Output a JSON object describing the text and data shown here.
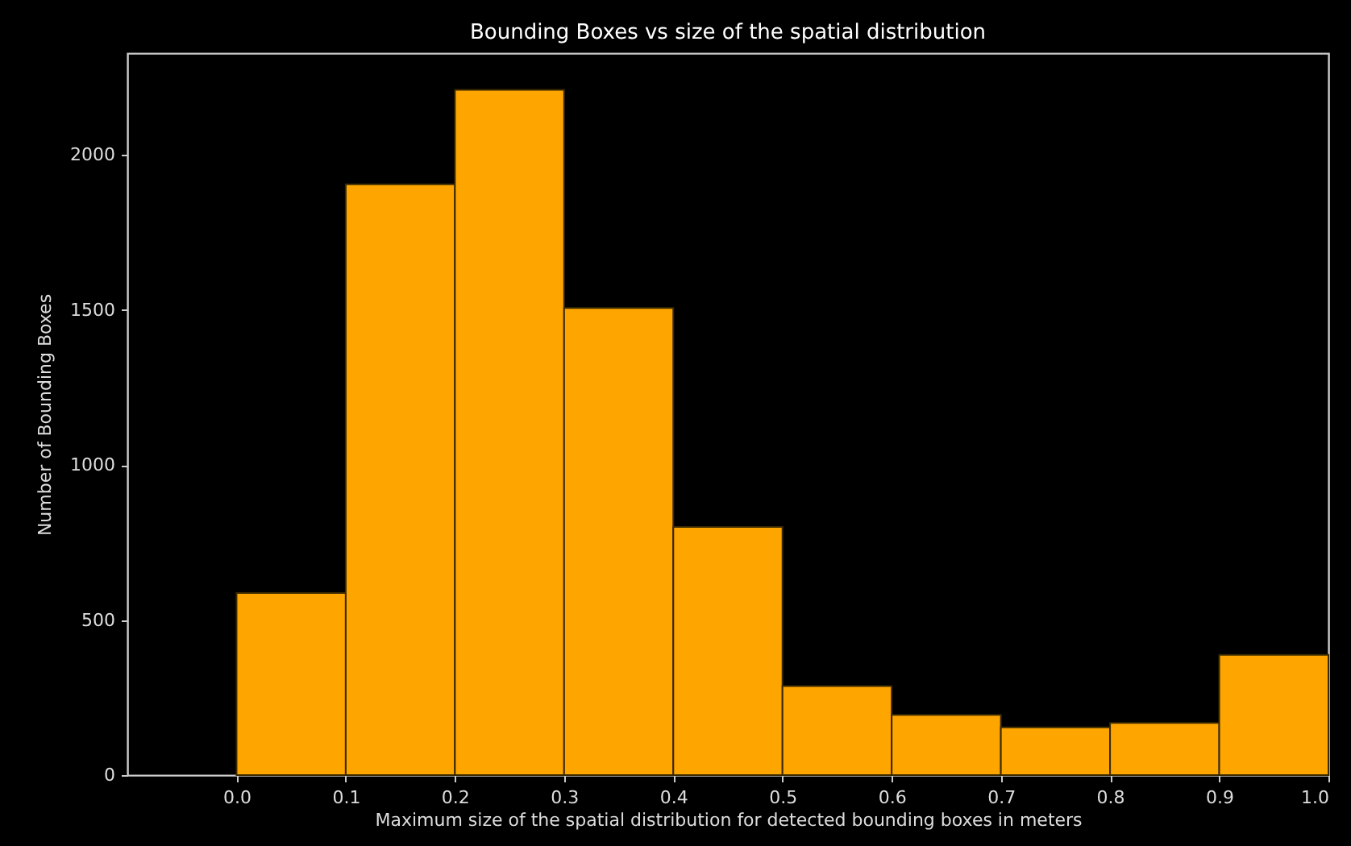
{
  "chart_data": {
    "type": "histogram",
    "title": "Bounding Boxes vs size of the spatial distribution",
    "xlabel": "Maximum size of the spatial distribution for detected bounding boxes in meters",
    "ylabel": "Number of Bounding Boxes",
    "bins": [
      0.0,
      0.1,
      0.2,
      0.3,
      0.4,
      0.5,
      0.6,
      0.7,
      0.8,
      0.9,
      1.0
    ],
    "values": [
      587,
      1905,
      2210,
      1506,
      800,
      287,
      194,
      154,
      168,
      388
    ],
    "color": "#ffa500",
    "xlim": [
      -0.1,
      1.0
    ],
    "xticks": [
      {
        "value": 0,
        "label": "0.0"
      },
      {
        "value": 0.1,
        "label": "0.1"
      },
      {
        "value": 0.2,
        "label": "0.2"
      },
      {
        "value": 0.3,
        "label": "0.3"
      },
      {
        "value": 0.4,
        "label": "0.4"
      },
      {
        "value": 0.5,
        "label": "0.5"
      },
      {
        "value": 0.6,
        "label": "0.6"
      },
      {
        "value": 0.7,
        "label": "0.7"
      },
      {
        "value": 0.8,
        "label": "0.8"
      },
      {
        "value": 0.9,
        "label": "0.9"
      },
      {
        "value": 1,
        "label": "1.0"
      }
    ],
    "ylim": [
      0,
      2328
    ],
    "yticks": [
      0,
      500,
      1000,
      1500,
      2000
    ],
    "grid": false
  }
}
